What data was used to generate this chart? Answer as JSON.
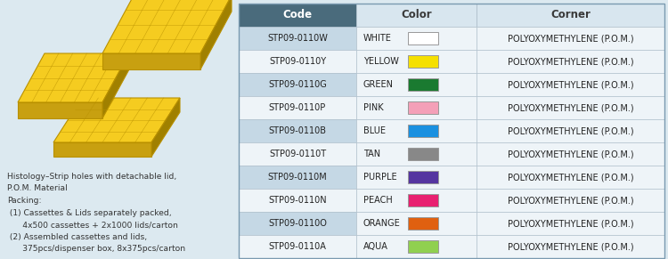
{
  "bg_color": "#dce9f0",
  "header_bg": "#4a6b7c",
  "header_text_color": "#ffffff",
  "row_alt_color": "#c5d8e5",
  "row_white_color": "#eef4f8",
  "border_color": "#aabbc8",
  "columns": [
    "Code",
    "Color",
    "Corner"
  ],
  "rows": [
    {
      "code": "STP09-0110W",
      "color_name": "WHITE",
      "color_hex": "#ffffff",
      "corner": "POLYOXYMETHYLENE (P.O.M.)"
    },
    {
      "code": "STP09-0110Y",
      "color_name": "YELLOW",
      "color_hex": "#f5e000",
      "corner": "POLYOXYMETHYLENE (P.O.M.)"
    },
    {
      "code": "STP09-0110G",
      "color_name": "GREEN",
      "color_hex": "#1a7a30",
      "corner": "POLYOXYMETHYLENE (P.O.M.)"
    },
    {
      "code": "STP09-0110P",
      "color_name": "PINK",
      "color_hex": "#f4a0b8",
      "corner": "POLYOXYMETHYLENE (P.O.M.)"
    },
    {
      "code": "STP09-0110B",
      "color_name": "BLUE",
      "color_hex": "#1a90e0",
      "corner": "POLYOXYMETHYLENE (P.O.M.)"
    },
    {
      "code": "STP09-0110T",
      "color_name": "TAN",
      "color_hex": "#888888",
      "corner": "POLYOXYMETHYLENE (P.O.M.)"
    },
    {
      "code": "STP09-0110M",
      "color_name": "PURPLE",
      "color_hex": "#5535a0",
      "corner": "POLYOXYMETHYLENE (P.O.M.)"
    },
    {
      "code": "STP09-0110N",
      "color_name": "PEACH",
      "color_hex": "#e82070",
      "corner": "POLYOXYMETHYLENE (P.O.M.)"
    },
    {
      "code": "STP09-0110O",
      "color_name": "ORANGE",
      "color_hex": "#e06010",
      "corner": "POLYOXYMETHYLENE (P.O.M.)"
    },
    {
      "code": "STP09-0110A",
      "color_name": "AQUA",
      "color_hex": "#90d050",
      "corner": "POLYOXYMETHYLENE (P.O.M.)"
    }
  ],
  "description_lines": [
    "Histology–Strip holes with detachable lid,",
    "P.O.M. Material",
    "Packing:",
    " (1) Cassettes & Lids separately packed,",
    "      4x500 cassettes + 2x1000 lids/carton",
    " (2) Assembled cassettes and lids,",
    "      375pcs/dispenser box, 8x375pcs/carton"
  ]
}
